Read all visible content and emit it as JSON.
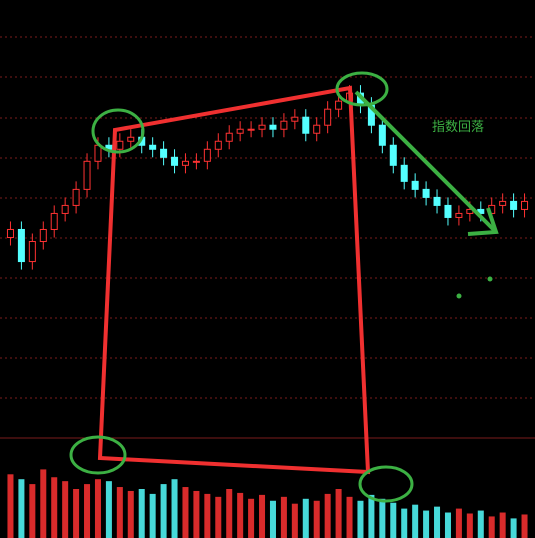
{
  "chart_data": {
    "type": "candlestick",
    "annotation": "指数回落",
    "ylim": [
      0,
      100
    ],
    "volume_ylim": [
      0,
      100
    ],
    "up_color": "#ff3232",
    "down_color": "#54ffff",
    "open": [
      50,
      52,
      44,
      49,
      52,
      56,
      58,
      62,
      69,
      73,
      72,
      74,
      75,
      73,
      72,
      70,
      68,
      69,
      69,
      72,
      74,
      76,
      77,
      77,
      78,
      77,
      79,
      80,
      76,
      78,
      82,
      84,
      86,
      83,
      78,
      73,
      68,
      64,
      62,
      60,
      58,
      55,
      56,
      57,
      56,
      58,
      59,
      57
    ],
    "close": [
      52,
      44,
      49,
      52,
      56,
      58,
      62,
      69,
      73,
      72,
      74,
      75,
      73,
      72,
      70,
      68,
      69,
      69,
      72,
      74,
      76,
      77,
      77,
      78,
      77,
      79,
      80,
      76,
      78,
      82,
      84,
      86,
      83,
      78,
      73,
      68,
      64,
      62,
      60,
      58,
      55,
      56,
      57,
      56,
      58,
      59,
      57,
      59
    ],
    "high": [
      54,
      54,
      51,
      54,
      58,
      60,
      64,
      71,
      75,
      75,
      76,
      77,
      77,
      75,
      74,
      72,
      71,
      71,
      74,
      76,
      78,
      79,
      79,
      80,
      80,
      81,
      82,
      82,
      80,
      84,
      86,
      88,
      88,
      85,
      80,
      75,
      70,
      66,
      64,
      62,
      60,
      58,
      59,
      59,
      60,
      61,
      61,
      61
    ],
    "low": [
      48,
      42,
      42,
      47,
      50,
      54,
      56,
      60,
      67,
      70,
      70,
      72,
      71,
      70,
      68,
      66,
      66,
      67,
      67,
      70,
      72,
      74,
      75,
      75,
      75,
      75,
      77,
      74,
      74,
      76,
      80,
      82,
      81,
      76,
      71,
      66,
      62,
      60,
      58,
      56,
      53,
      53,
      54,
      54,
      54,
      56,
      55,
      55
    ],
    "volume": [
      65,
      60,
      55,
      70,
      62,
      58,
      50,
      55,
      60,
      58,
      52,
      48,
      50,
      45,
      55,
      60,
      52,
      48,
      45,
      42,
      50,
      46,
      40,
      44,
      38,
      42,
      35,
      40,
      38,
      45,
      50,
      42,
      38,
      44,
      40,
      36,
      30,
      34,
      28,
      32,
      26,
      30,
      25,
      28,
      22,
      26,
      20,
      24
    ]
  }
}
